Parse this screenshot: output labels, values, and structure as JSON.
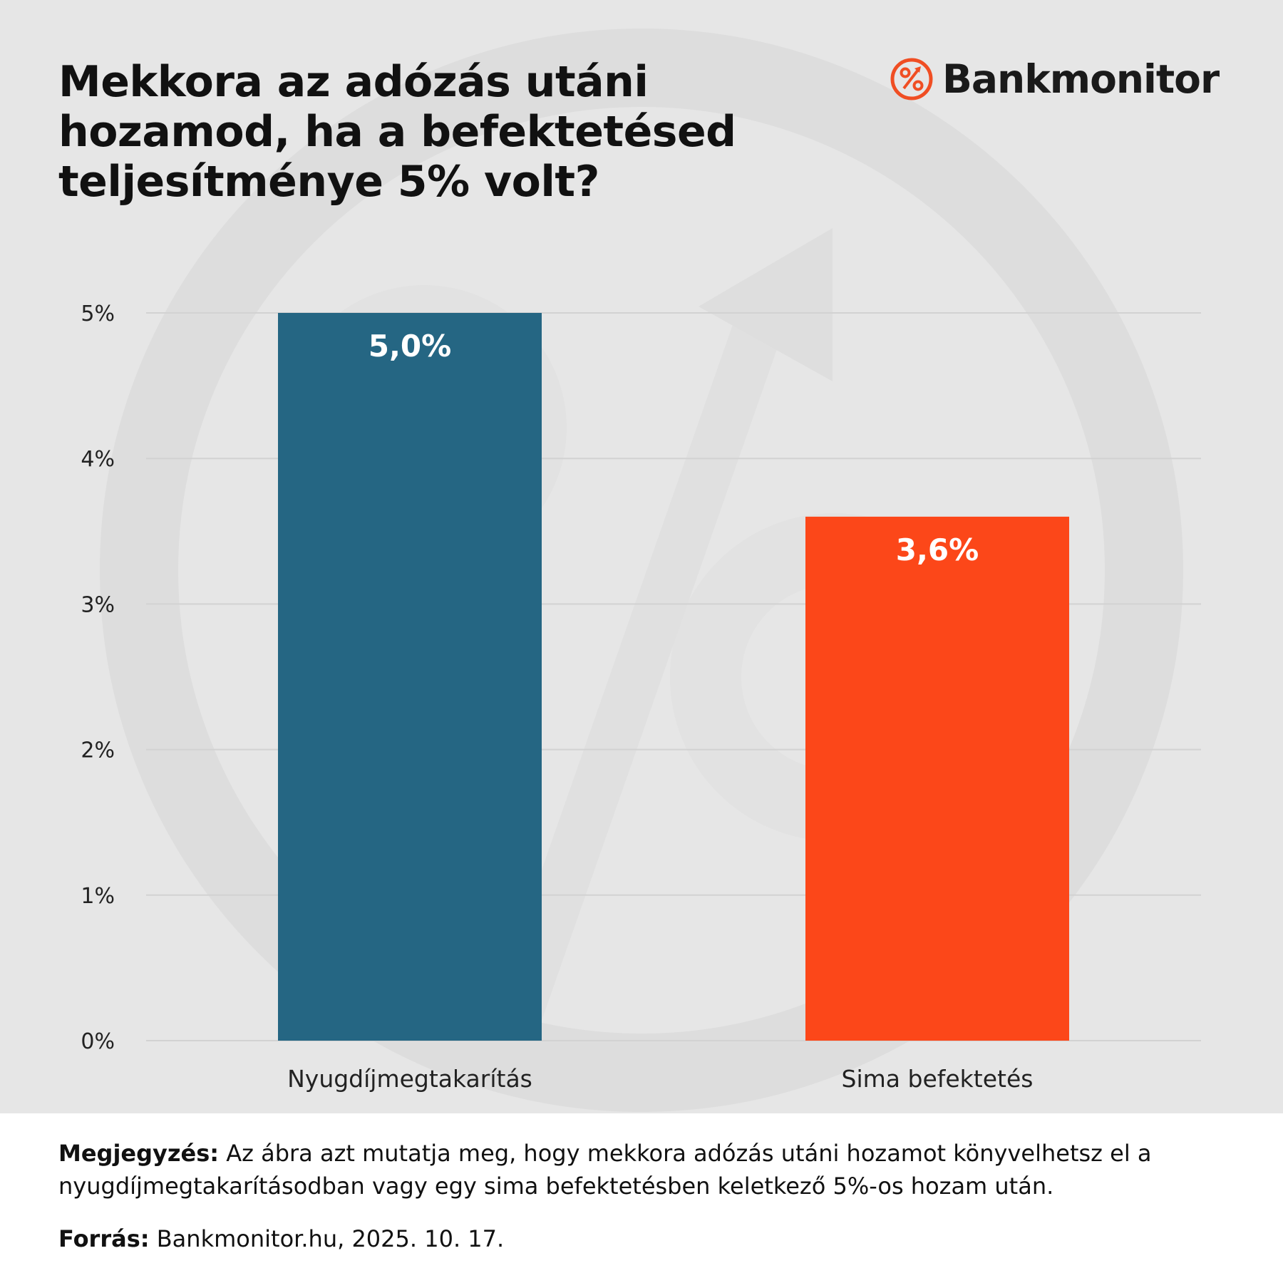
{
  "header": {
    "title": "Mekkora az adózás utáni hozamod, ha a befektetésed teljesítménye 5% volt?",
    "brand": "Bankmonitor"
  },
  "colors": {
    "background": "#e6e6e6",
    "series_1": "#256683",
    "series_2": "#fc4719",
    "brand_accent": "#f04e23",
    "watermark": "#dcdcdc"
  },
  "icons": {
    "logo": "percent-arrow-circle-icon",
    "watermark": "percent-arrow-circle-watermark-icon"
  },
  "chart_data": {
    "type": "bar",
    "categories": [
      "Nyugdíjmegtakarítás",
      "Sima befektetés"
    ],
    "values": [
      5.0,
      3.6
    ],
    "value_labels": [
      "5,0%",
      "3,6%"
    ],
    "bar_colors": [
      "#256683",
      "#fc4719"
    ],
    "title": "Mekkora az adózás utáni hozamod, ha a befektetésed teljesítménye 5% volt?",
    "xlabel": "",
    "ylabel": "",
    "ylim": [
      0,
      5
    ],
    "yticks": [
      0,
      1,
      2,
      3,
      4,
      5
    ],
    "ytick_labels": [
      "0%",
      "1%",
      "2%",
      "3%",
      "4%",
      "5%"
    ],
    "grid": true,
    "legend": "none"
  },
  "footer": {
    "note_label": "Megjegyzés:",
    "note_text": " Az ábra azt mutatja meg, hogy mekkora adózás utáni hozamot könyvelhetsz el a nyugdíjmegtakarításodban vagy egy sima befektetésben keletkező 5%-os hozam után.",
    "source_label": "Forrás:",
    "source_text": " Bankmonitor.hu, 2025. 10. 17."
  }
}
